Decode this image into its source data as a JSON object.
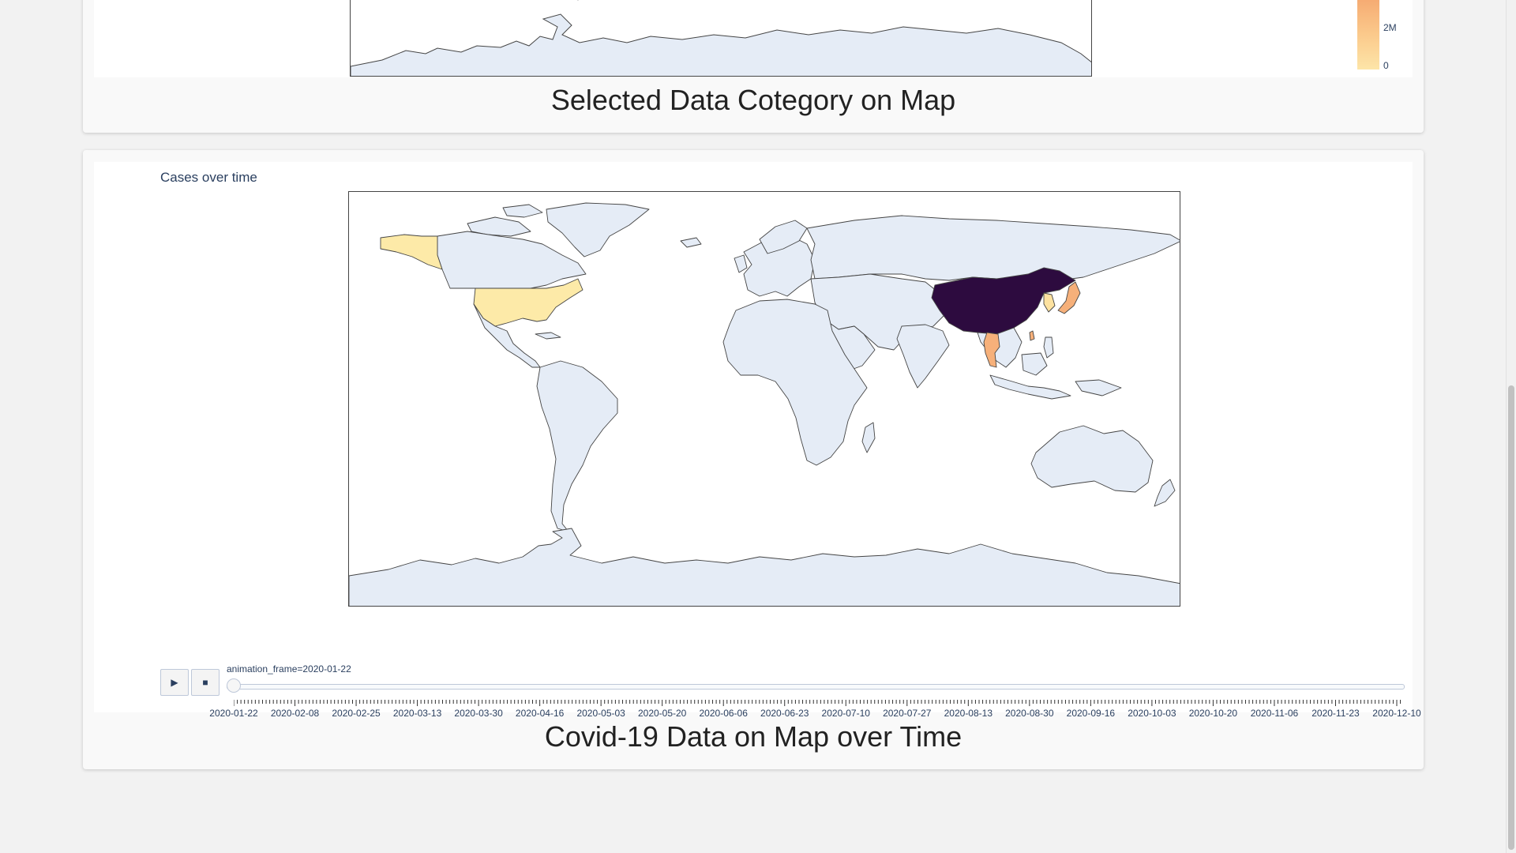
{
  "top_panel": {
    "caption": "Selected Data Cotegory on Map",
    "colorbar": {
      "ticks": [
        "2M",
        "0"
      ]
    }
  },
  "bottom_panel": {
    "caption": "Covid-19 Data on Map over Time",
    "chart_title": "Cases over time",
    "animation": {
      "play_symbol": "▶",
      "stop_symbol": "■",
      "current_label": "animation_frame=2020-01-22",
      "slider_value_fraction": 0,
      "tick_labels": [
        "2020-01-22",
        "2020-02-08",
        "2020-02-25",
        "2020-03-13",
        "2020-03-30",
        "2020-04-16",
        "2020-05-03",
        "2020-05-20",
        "2020-06-06",
        "2020-06-23",
        "2020-07-10",
        "2020-07-27",
        "2020-08-13",
        "2020-08-30",
        "2020-09-16",
        "2020-10-03",
        "2020-10-20",
        "2020-11-06",
        "2020-11-23",
        "2020-12-10"
      ]
    },
    "map_colors": {
      "land": "#e5ecf6",
      "coast": "#444444",
      "china": "#2d0b3f",
      "usa": "#fdeaa8",
      "japan": "#f6b07a",
      "thailand": "#f6b07a",
      "korea": "#fde2a0",
      "taiwan": "#f6b07a"
    }
  }
}
